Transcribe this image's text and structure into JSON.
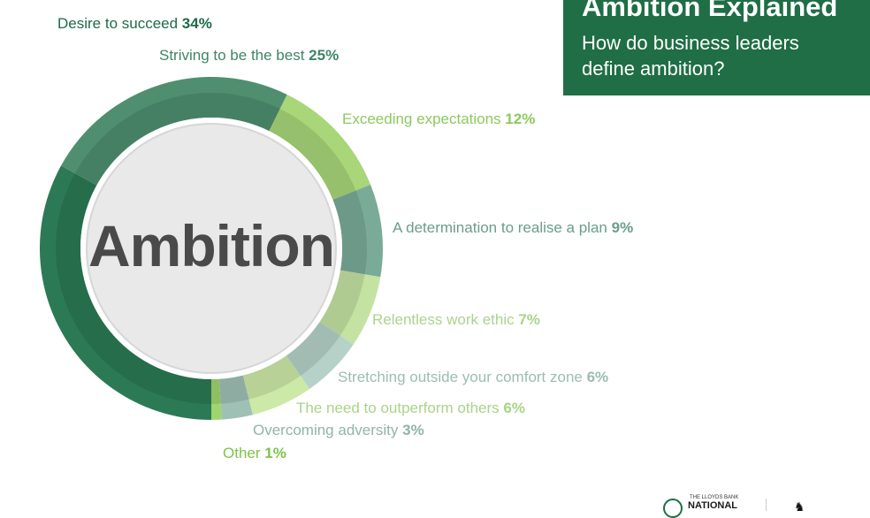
{
  "title": {
    "main": "Ambition Explained",
    "sub": "How do business leaders define ambition?"
  },
  "center_label": "Ambition",
  "logo": {
    "small": "THE LLOYDS BANK",
    "big": "NATIONAL"
  },
  "colors": {
    "title_bg": "#1f6e45",
    "center_fill": "#e9e9e9"
  },
  "chart_data": {
    "type": "pie",
    "variant": "donut",
    "title": "Ambition",
    "categories": [
      "Desire to succeed",
      "Striving to be the best",
      "Exceeding expectations",
      "A determination to realise a plan",
      "Relentless work ethic",
      "Stretching outside your comfort zone",
      "The need to outperform others",
      "Overcoming adversity",
      "Other"
    ],
    "values": [
      34,
      25,
      12,
      9,
      7,
      6,
      6,
      3,
      1
    ],
    "value_labels": [
      "34%",
      "25%",
      "12%",
      "9%",
      "7%",
      "6%",
      "6%",
      "3%",
      "1%"
    ],
    "colors": [
      "#2b7a55",
      "#4f8f70",
      "#a8d678",
      "#7aab98",
      "#c4e3a3",
      "#b6d2c8",
      "#cde9a8",
      "#9fc0b4",
      "#9fd56f"
    ],
    "text_colors": [
      "#1e6b49",
      "#3f8566",
      "#8dc95f",
      "#6a9e89",
      "#a9d48c",
      "#9bbdb1",
      "#a8d487",
      "#8fb5a7",
      "#7fc24b"
    ]
  }
}
